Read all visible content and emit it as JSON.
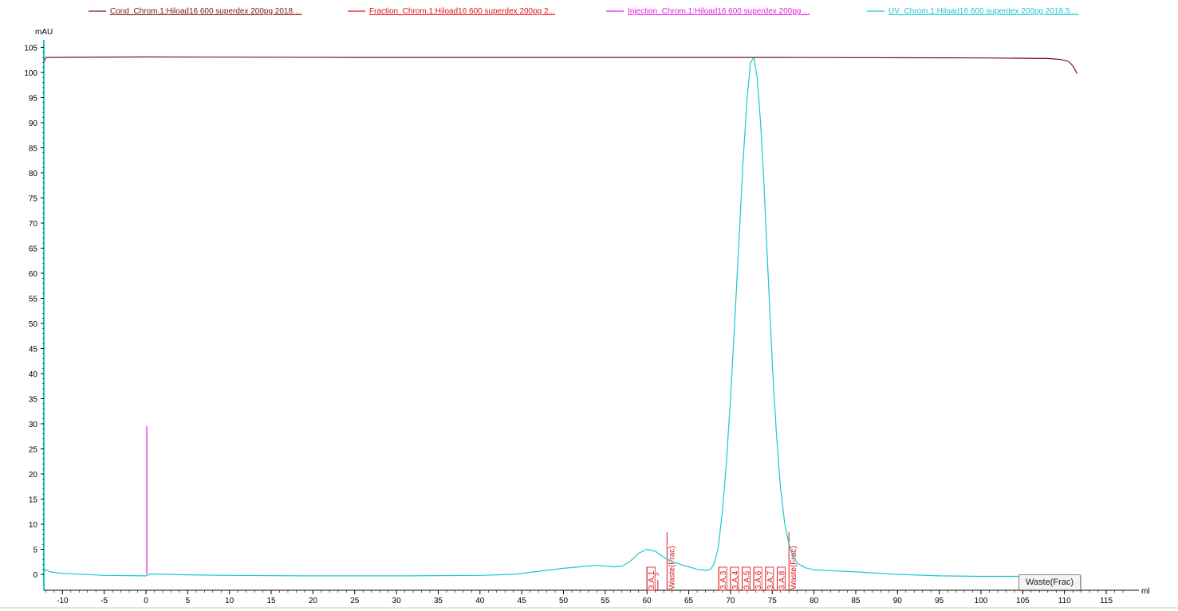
{
  "chart_data": {
    "type": "line",
    "y_unit": "mAU",
    "x_unit": "ml",
    "xlim": [
      -12.5,
      118
    ],
    "ylim": [
      -3,
      107
    ],
    "x_ticks": [
      -10,
      -5,
      0,
      5,
      10,
      15,
      20,
      25,
      30,
      35,
      40,
      45,
      50,
      55,
      60,
      65,
      70,
      75,
      80,
      85,
      90,
      95,
      100,
      105,
      110,
      115
    ],
    "y_ticks": [
      0,
      5,
      10,
      15,
      20,
      25,
      30,
      35,
      40,
      45,
      50,
      55,
      60,
      65,
      70,
      75,
      80,
      85,
      90,
      95,
      100,
      105
    ],
    "legend": [
      {
        "label": "Cond_Chrom.1:Hiload16 600 superdex 200pg 2018....",
        "color": "#7b1414"
      },
      {
        "label": "Fraction_Chrom.1:Hiload16 600 superdex 200pg 2...",
        "color": "#e0101a"
      },
      {
        "label": "Injection_Chrom.1:Hiload16 600 superdex 200pg ...",
        "color": "#e020e0"
      },
      {
        "label": "UV_Chrom.1:Hiload16 600  superdex 200pg 2018.5....",
        "color": "#1cc7cc"
      }
    ],
    "series": [
      {
        "name": "UV_Chrom.1:Hiload16 600  superdex 200pg 2018.5....",
        "color": "#1cc7cc",
        "points": [
          [
            -12.3,
            0.2
          ],
          [
            -12.0,
            1.0
          ],
          [
            -11.5,
            0.5
          ],
          [
            -10,
            0.2
          ],
          [
            -5,
            -0.2
          ],
          [
            0,
            -0.3
          ],
          [
            0.5,
            0.1
          ],
          [
            5,
            -0.1
          ],
          [
            10,
            -0.2
          ],
          [
            20,
            -0.3
          ],
          [
            30,
            -0.3
          ],
          [
            40,
            -0.2
          ],
          [
            44,
            0.0
          ],
          [
            46,
            0.4
          ],
          [
            48,
            0.8
          ],
          [
            50,
            1.2
          ],
          [
            52,
            1.5
          ],
          [
            54,
            1.8
          ],
          [
            56,
            1.5
          ],
          [
            57,
            1.6
          ],
          [
            58,
            2.6
          ],
          [
            59,
            4.2
          ],
          [
            60,
            5.0
          ],
          [
            61,
            4.6
          ],
          [
            62,
            3.4
          ],
          [
            63,
            2.6
          ],
          [
            64,
            2.0
          ],
          [
            65,
            1.5
          ],
          [
            66,
            1.0
          ],
          [
            67,
            0.8
          ],
          [
            67.6,
            1.0
          ],
          [
            68,
            2.0
          ],
          [
            68.5,
            5.0
          ],
          [
            69,
            12
          ],
          [
            69.5,
            22
          ],
          [
            70,
            35
          ],
          [
            70.5,
            50
          ],
          [
            71,
            66
          ],
          [
            71.5,
            82
          ],
          [
            72,
            95
          ],
          [
            72.4,
            102
          ],
          [
            72.8,
            103
          ],
          [
            73.2,
            99
          ],
          [
            73.6,
            90
          ],
          [
            74,
            78
          ],
          [
            74.5,
            60
          ],
          [
            75,
            42
          ],
          [
            75.5,
            28
          ],
          [
            76,
            17
          ],
          [
            76.5,
            10
          ],
          [
            77,
            6
          ],
          [
            77.5,
            3.5
          ],
          [
            78,
            2.2
          ],
          [
            79,
            1.3
          ],
          [
            80,
            0.9
          ],
          [
            85,
            0.5
          ],
          [
            90,
            0.0
          ],
          [
            95,
            -0.3
          ],
          [
            100,
            -0.4
          ],
          [
            105,
            -0.4
          ],
          [
            110,
            -0.5
          ]
        ]
      },
      {
        "name": "Cond_Chrom.1:Hiload16 600 superdex 200pg 2018....",
        "color": "#7b1414",
        "points": [
          [
            -12.2,
            102.2
          ],
          [
            -12.0,
            103.0
          ],
          [
            0,
            103.1
          ],
          [
            25,
            103.0
          ],
          [
            50,
            103.0
          ],
          [
            75,
            103.0
          ],
          [
            100,
            102.9
          ],
          [
            108,
            102.8
          ],
          [
            109.5,
            102.6
          ],
          [
            110.5,
            102.2
          ],
          [
            111.0,
            101.3
          ],
          [
            111.5,
            99.8
          ]
        ]
      },
      {
        "name": "Injection_Chrom.1:Hiload16 600 superdex 200pg ...",
        "color": "#e020e0",
        "points": [
          [
            0.1,
            0
          ],
          [
            0.1,
            29.5
          ]
        ]
      }
    ],
    "fractions": [
      {
        "x": 60.0,
        "label": "3.A.1"
      },
      {
        "x": 61.3,
        "label": "^"
      },
      {
        "x": 62.4,
        "label": "Waste(Frac)"
      },
      {
        "x": 68.6,
        "label": "3.A.3"
      },
      {
        "x": 70.0,
        "label": "3.A.4"
      },
      {
        "x": 71.4,
        "label": "3.A.5"
      },
      {
        "x": 72.8,
        "label": "3.A.6"
      },
      {
        "x": 74.2,
        "label": "3.A.7"
      },
      {
        "x": 75.6,
        "label": "3.A.8"
      },
      {
        "x": 77.0,
        "label": "Waste(Frac)"
      }
    ]
  },
  "tooltip": {
    "text": "Waste(Frac)"
  }
}
